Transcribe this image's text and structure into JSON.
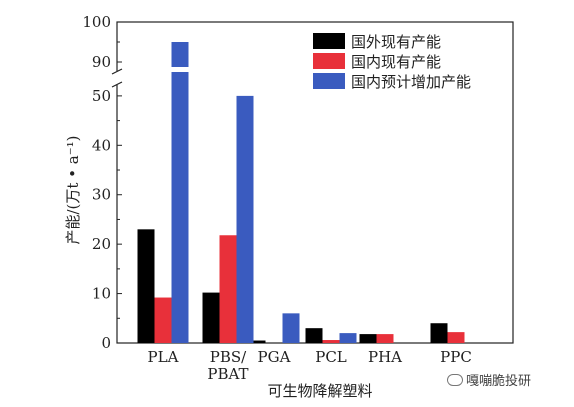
{
  "chart_data": {
    "type": "bar",
    "categories": [
      "PLA",
      "PBS/\nPBAT",
      "PGA",
      "PCL",
      "PHA",
      "PPC"
    ],
    "series": [
      {
        "name": "国外现有产能",
        "color": "#000000",
        "values": [
          23,
          10.2,
          0.5,
          3,
          1.8,
          4
        ]
      },
      {
        "name": "国内现有产能",
        "color": "#e8303a",
        "values": [
          9.2,
          21.8,
          0,
          0.6,
          1.8,
          2.2
        ]
      },
      {
        "name": "国内预计增加产能",
        "color": "#3a5bbf",
        "values": [
          95,
          50,
          6,
          2,
          0,
          0
        ]
      }
    ],
    "xlabel": "可生物降解塑料",
    "ylabel": "产能/(万t • a⁻¹)",
    "yticks_lower": [
      0,
      10,
      20,
      30,
      40,
      50
    ],
    "yticks_upper": [
      90,
      100
    ],
    "axis_break": [
      52,
      88
    ],
    "legend_position": "top-right"
  },
  "watermark": {
    "text": "嘎嘣脆投研",
    "icon": "wechat-icon"
  }
}
